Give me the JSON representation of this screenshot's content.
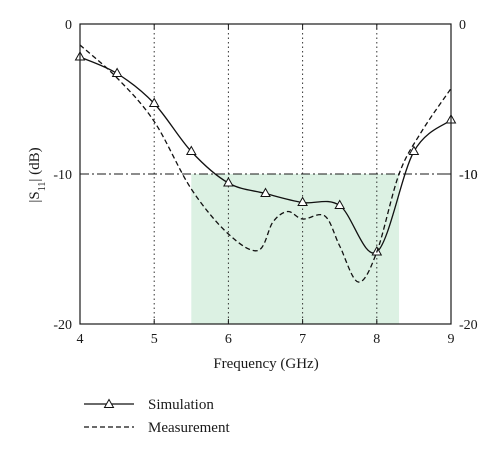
{
  "chart_data": {
    "type": "line",
    "title": "",
    "xlabel": "Frequency (GHz)",
    "ylabel_prefix": "|S",
    "ylabel_subscript": "11",
    "ylabel_suffix": "| (dB)",
    "xlim": [
      4,
      9
    ],
    "ylim": [
      -20,
      0
    ],
    "x_ticks": [
      "4",
      "5",
      "6",
      "7",
      "8",
      "9"
    ],
    "y_ticks": [
      "0",
      "-10",
      "-20"
    ],
    "y_ticks_right": [
      "0",
      "-10",
      "-10",
      "-20"
    ],
    "grid": "vertical dotted lines at x = 5, 6, 7, 8",
    "reference_line": {
      "y": -10,
      "style": "dash-dot"
    },
    "highlight_band": {
      "x": [
        5.5,
        8.3
      ],
      "y": [
        -20,
        -10
      ],
      "color": "#dcf1e3"
    },
    "legend_position": "below-left",
    "series": [
      {
        "name": "Simulation",
        "style": "solid",
        "marker": "triangle",
        "color": "#111111",
        "x": [
          4.0,
          4.5,
          5.0,
          5.5,
          6.0,
          6.5,
          7.0,
          7.5,
          8.0,
          8.5,
          9.0
        ],
        "values": [
          -2.2,
          -3.3,
          -5.3,
          -8.5,
          -10.6,
          -11.3,
          -11.9,
          -12.1,
          -15.2,
          -8.5,
          -6.4
        ]
      },
      {
        "name": "Measurement",
        "style": "dashed",
        "color": "#111111",
        "x": [
          4.0,
          4.5,
          5.0,
          5.5,
          6.0,
          6.4,
          6.6,
          6.8,
          7.0,
          7.3,
          7.5,
          7.75,
          8.0,
          8.3,
          8.6,
          9.0
        ],
        "values": [
          -1.4,
          -3.6,
          -6.5,
          -11.0,
          -14.0,
          -15.1,
          -13.2,
          -12.5,
          -13.0,
          -12.8,
          -14.8,
          -17.2,
          -15.2,
          -10.0,
          -7.2,
          -4.3
        ]
      }
    ]
  }
}
